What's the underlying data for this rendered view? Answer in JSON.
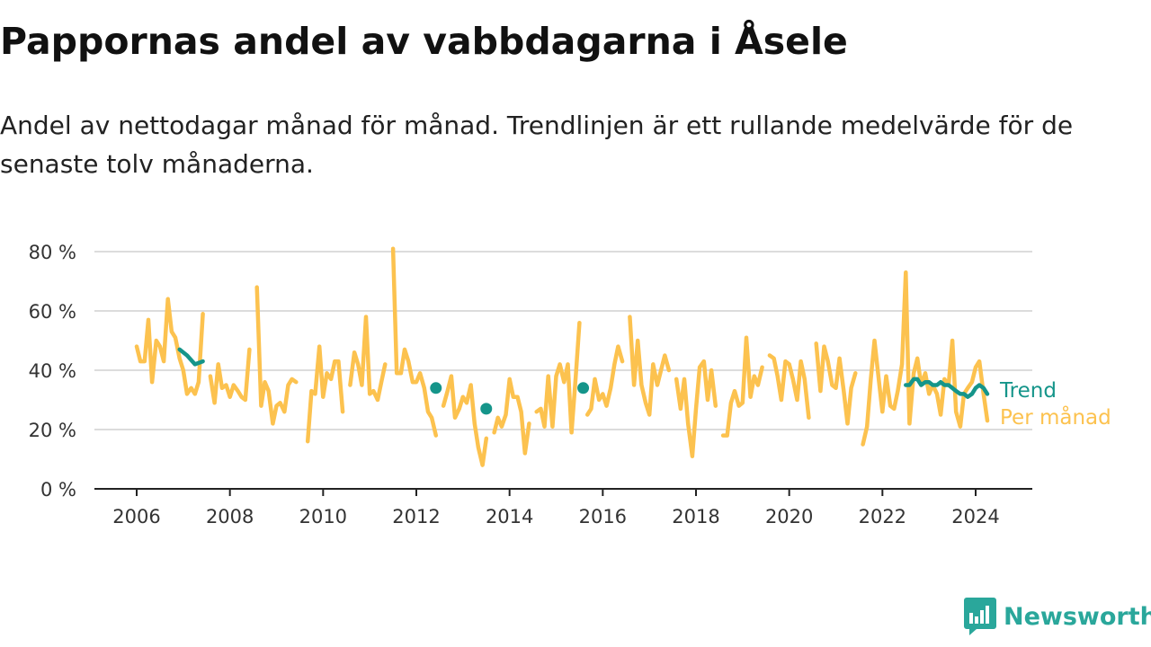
{
  "header": {
    "title": "Pappornas andel av vabbdagarna i Åsele",
    "subtitle": "Andel av nettodagar månad för månad. Trendlinjen är ett rullande medelvärde för de senaste tolv månaderna."
  },
  "brand": {
    "name": "Newsworthy",
    "icon": "newsworthy-logo-icon",
    "color": "#2aa79b"
  },
  "colors": {
    "monthly": "#fcc24f",
    "trend": "#15958a",
    "grid": "#dcdcdc",
    "axis": "#222222"
  },
  "chart_data": {
    "type": "line",
    "title": "Pappornas andel av vabbdagarna i Åsele",
    "subtitle": "Andel av nettodagar månad för månad. Trendlinjen är ett rullande medelvärde för de senaste tolv månaderna.",
    "xlabel": "",
    "ylabel": "",
    "xlim": [
      2005.55,
      2025.25
    ],
    "ylim": [
      0,
      80
    ],
    "grid": true,
    "x_ticks": [
      2006,
      2008,
      2010,
      2012,
      2014,
      2016,
      2018,
      2020,
      2022,
      2024
    ],
    "x_tick_labels": [
      "2006",
      "2008",
      "2010",
      "2012",
      "2014",
      "2016",
      "2018",
      "2020",
      "2022",
      "2024"
    ],
    "y_ticks": [
      0,
      20,
      40,
      60,
      80
    ],
    "y_tick_labels": [
      "0 %",
      "20 %",
      "40 %",
      "60 %",
      "80 %"
    ],
    "legend": "direct labels at right end of lines",
    "series": [
      {
        "name": "Per månad",
        "color": "#fcc24f",
        "segments": [
          [
            [
              2006.0,
              48
            ],
            [
              2006.08,
              43
            ],
            [
              2006.17,
              43
            ],
            [
              2006.25,
              57
            ],
            [
              2006.33,
              36
            ],
            [
              2006.42,
              50
            ],
            [
              2006.5,
              48
            ],
            [
              2006.58,
              43
            ],
            [
              2006.67,
              64
            ],
            [
              2006.75,
              53
            ],
            [
              2006.83,
              51
            ],
            [
              2006.92,
              44
            ],
            [
              2007.0,
              40
            ],
            [
              2007.08,
              32
            ],
            [
              2007.17,
              34
            ],
            [
              2007.25,
              32
            ],
            [
              2007.33,
              36
            ],
            [
              2007.42,
              59
            ]
          ],
          [
            [
              2007.58,
              38
            ],
            [
              2007.67,
              29
            ],
            [
              2007.75,
              42
            ],
            [
              2007.83,
              34
            ],
            [
              2007.92,
              35
            ],
            [
              2008.0,
              31
            ],
            [
              2008.08,
              35
            ],
            [
              2008.17,
              33
            ],
            [
              2008.25,
              31
            ],
            [
              2008.33,
              30
            ],
            [
              2008.42,
              47
            ]
          ],
          [
            [
              2008.58,
              68
            ],
            [
              2008.67,
              28
            ],
            [
              2008.75,
              36
            ],
            [
              2008.83,
              33
            ],
            [
              2008.92,
              22
            ],
            [
              2009.0,
              28
            ],
            [
              2009.08,
              29
            ],
            [
              2009.17,
              26
            ],
            [
              2009.25,
              35
            ],
            [
              2009.33,
              37
            ],
            [
              2009.42,
              36
            ]
          ],
          [
            [
              2009.67,
              16
            ],
            [
              2009.75,
              33
            ],
            [
              2009.83,
              32
            ],
            [
              2009.92,
              48
            ],
            [
              2010.0,
              31
            ],
            [
              2010.08,
              39
            ],
            [
              2010.17,
              37
            ],
            [
              2010.25,
              43
            ],
            [
              2010.33,
              43
            ],
            [
              2010.42,
              26
            ]
          ],
          [
            [
              2010.58,
              35
            ],
            [
              2010.67,
              46
            ],
            [
              2010.75,
              42
            ],
            [
              2010.83,
              35
            ],
            [
              2010.92,
              58
            ],
            [
              2011.0,
              32
            ],
            [
              2011.08,
              33
            ],
            [
              2011.17,
              30
            ],
            [
              2011.25,
              36
            ],
            [
              2011.33,
              42
            ]
          ],
          [
            [
              2011.5,
              81
            ],
            [
              2011.58,
              39
            ],
            [
              2011.67,
              39
            ],
            [
              2011.75,
              47
            ],
            [
              2011.83,
              43
            ],
            [
              2011.92,
              36
            ],
            [
              2012.0,
              36
            ],
            [
              2012.08,
              39
            ],
            [
              2012.17,
              34
            ],
            [
              2012.25,
              26
            ],
            [
              2012.33,
              24
            ],
            [
              2012.42,
              18
            ]
          ],
          [
            [
              2012.58,
              28
            ],
            [
              2012.67,
              33
            ],
            [
              2012.75,
              38
            ],
            [
              2012.83,
              24
            ],
            [
              2012.92,
              27
            ],
            [
              2013.0,
              31
            ],
            [
              2013.08,
              29
            ],
            [
              2013.17,
              35
            ],
            [
              2013.25,
              22
            ],
            [
              2013.33,
              14
            ],
            [
              2013.42,
              8
            ],
            [
              2013.5,
              17
            ]
          ],
          [
            [
              2013.67,
              19
            ],
            [
              2013.75,
              24
            ],
            [
              2013.83,
              21
            ],
            [
              2013.92,
              25
            ],
            [
              2014.0,
              37
            ],
            [
              2014.08,
              31
            ],
            [
              2014.17,
              31
            ],
            [
              2014.25,
              26
            ],
            [
              2014.33,
              12
            ],
            [
              2014.42,
              22
            ]
          ],
          [
            [
              2014.58,
              26
            ],
            [
              2014.67,
              27
            ],
            [
              2014.75,
              21
            ],
            [
              2014.83,
              38
            ],
            [
              2014.92,
              21
            ],
            [
              2015.0,
              38
            ],
            [
              2015.08,
              42
            ],
            [
              2015.17,
              36
            ],
            [
              2015.25,
              42
            ],
            [
              2015.33,
              19
            ],
            [
              2015.42,
              38
            ],
            [
              2015.5,
              56
            ]
          ],
          [
            [
              2015.67,
              25
            ],
            [
              2015.75,
              27
            ],
            [
              2015.83,
              37
            ],
            [
              2015.92,
              30
            ],
            [
              2016.0,
              32
            ],
            [
              2016.08,
              28
            ],
            [
              2016.17,
              34
            ],
            [
              2016.25,
              42
            ],
            [
              2016.33,
              48
            ],
            [
              2016.42,
              43
            ]
          ],
          [
            [
              2016.58,
              58
            ],
            [
              2016.67,
              35
            ],
            [
              2016.75,
              50
            ],
            [
              2016.83,
              35
            ],
            [
              2016.92,
              29
            ],
            [
              2017.0,
              25
            ],
            [
              2017.08,
              42
            ],
            [
              2017.17,
              35
            ],
            [
              2017.25,
              40
            ],
            [
              2017.33,
              45
            ],
            [
              2017.42,
              40
            ]
          ],
          [
            [
              2017.58,
              37
            ],
            [
              2017.67,
              27
            ],
            [
              2017.75,
              37
            ],
            [
              2017.83,
              22
            ],
            [
              2017.92,
              11
            ],
            [
              2018.0,
              27
            ],
            [
              2018.08,
              41
            ],
            [
              2018.17,
              43
            ],
            [
              2018.25,
              30
            ],
            [
              2018.33,
              40
            ],
            [
              2018.42,
              28
            ]
          ],
          [
            [
              2018.58,
              18
            ],
            [
              2018.67,
              18
            ],
            [
              2018.75,
              29
            ],
            [
              2018.83,
              33
            ],
            [
              2018.92,
              28
            ],
            [
              2019.0,
              29
            ],
            [
              2019.08,
              51
            ],
            [
              2019.17,
              31
            ],
            [
              2019.25,
              38
            ],
            [
              2019.33,
              35
            ],
            [
              2019.42,
              41
            ]
          ],
          [
            [
              2019.58,
              45
            ],
            [
              2019.67,
              44
            ],
            [
              2019.75,
              38
            ],
            [
              2019.83,
              30
            ],
            [
              2019.92,
              43
            ],
            [
              2020.0,
              42
            ],
            [
              2020.08,
              37
            ],
            [
              2020.17,
              30
            ],
            [
              2020.25,
              43
            ],
            [
              2020.33,
              37
            ],
            [
              2020.42,
              24
            ]
          ],
          [
            [
              2020.58,
              49
            ],
            [
              2020.67,
              33
            ],
            [
              2020.75,
              48
            ],
            [
              2020.83,
              43
            ],
            [
              2020.92,
              35
            ],
            [
              2021.0,
              34
            ],
            [
              2021.08,
              44
            ],
            [
              2021.17,
              33
            ],
            [
              2021.25,
              22
            ],
            [
              2021.33,
              34
            ],
            [
              2021.42,
              39
            ]
          ],
          [
            [
              2021.58,
              15
            ],
            [
              2021.67,
              21
            ],
            [
              2021.75,
              37
            ],
            [
              2021.83,
              50
            ],
            [
              2021.92,
              37
            ],
            [
              2022.0,
              26
            ],
            [
              2022.08,
              38
            ],
            [
              2022.17,
              28
            ],
            [
              2022.25,
              27
            ],
            [
              2022.33,
              33
            ],
            [
              2022.42,
              42
            ],
            [
              2022.5,
              73
            ],
            [
              2022.58,
              22
            ],
            [
              2022.67,
              39
            ],
            [
              2022.75,
              44
            ],
            [
              2022.83,
              35
            ],
            [
              2022.92,
              39
            ],
            [
              2023.0,
              32
            ],
            [
              2023.08,
              35
            ],
            [
              2023.17,
              32
            ],
            [
              2023.25,
              25
            ],
            [
              2023.33,
              37
            ],
            [
              2023.42,
              35
            ],
            [
              2023.5,
              50
            ],
            [
              2023.58,
              26
            ],
            [
              2023.67,
              21
            ],
            [
              2023.75,
              32
            ],
            [
              2023.83,
              34
            ],
            [
              2023.92,
              36
            ],
            [
              2024.0,
              41
            ],
            [
              2024.08,
              43
            ],
            [
              2024.17,
              32
            ],
            [
              2024.25,
              23
            ]
          ]
        ]
      },
      {
        "name": "Trend",
        "color": "#15958a",
        "segments": [
          [
            [
              2006.92,
              47
            ],
            [
              2007.08,
              45
            ],
            [
              2007.25,
              42
            ],
            [
              2007.42,
              43
            ]
          ],
          [
            [
              2012.42,
              34
            ]
          ],
          [
            [
              2013.5,
              27
            ]
          ],
          [
            [
              2015.58,
              34
            ]
          ],
          [
            [
              2022.5,
              35
            ],
            [
              2022.58,
              35
            ],
            [
              2022.67,
              37
            ],
            [
              2022.75,
              37
            ],
            [
              2022.83,
              35
            ],
            [
              2022.92,
              36
            ],
            [
              2023.0,
              36
            ],
            [
              2023.08,
              35
            ],
            [
              2023.17,
              35
            ],
            [
              2023.25,
              36
            ],
            [
              2023.33,
              35
            ],
            [
              2023.42,
              35
            ],
            [
              2023.5,
              34
            ],
            [
              2023.58,
              33
            ],
            [
              2023.67,
              32
            ],
            [
              2023.75,
              32
            ],
            [
              2023.83,
              31
            ],
            [
              2023.92,
              32
            ],
            [
              2024.0,
              34
            ],
            [
              2024.08,
              35
            ],
            [
              2024.17,
              34
            ],
            [
              2024.25,
              32
            ]
          ]
        ]
      }
    ]
  }
}
